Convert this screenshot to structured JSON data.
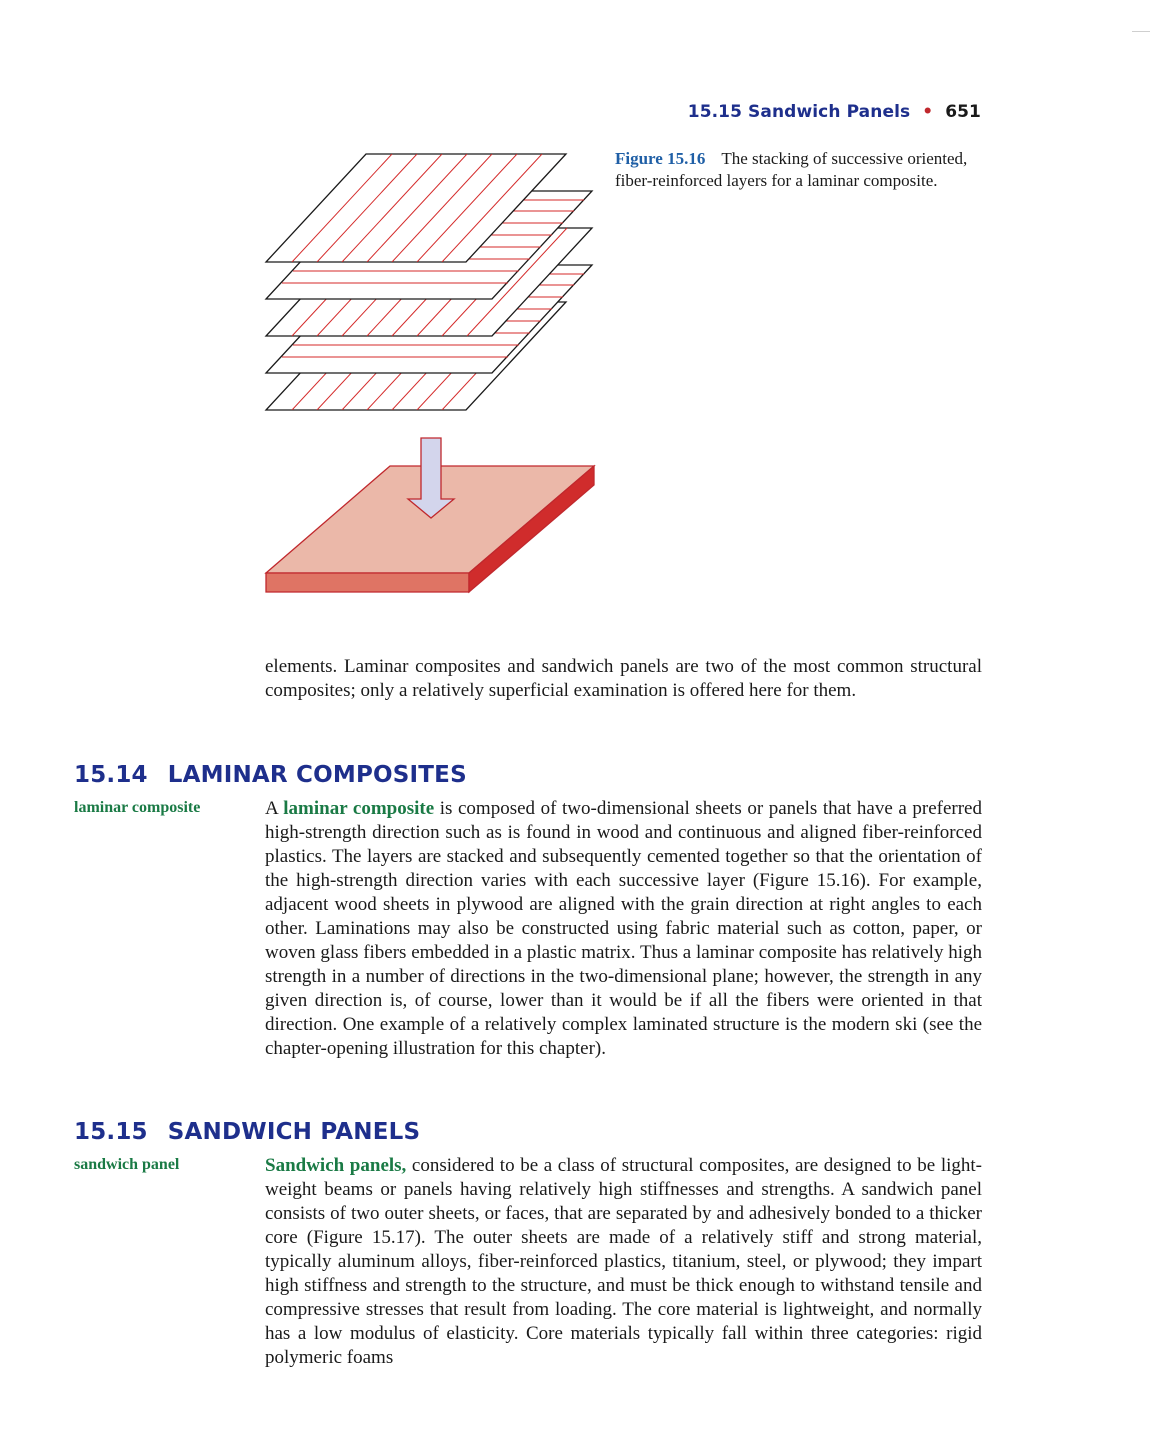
{
  "running_head": {
    "section": "15.15 Sandwich Panels",
    "separator": "•",
    "page_number": "651"
  },
  "figure": {
    "label": "Figure 15.16",
    "caption": "The stacking of successive oriented, fiber-reinforced layers for a laminar composite.",
    "colors": {
      "fiber_lines": "#d42a2a",
      "layer_outline": "#1a1a1a",
      "slab_top": "#ebb8a9",
      "slab_front": "#df7464",
      "slab_side": "#d02c2c",
      "arrow_fill": "#d3d5ec",
      "arrow_stroke": "#c0282d"
    }
  },
  "intro_paragraph": "elements. Laminar composites and sandwich panels are two of the most common structural composites; only a relatively superficial examination is offered here for them.",
  "section_1514": {
    "number": "15.14",
    "title": "LAMINAR COMPOSITES",
    "margin_term": "laminar composite",
    "lead": "A ",
    "term": "laminar composite",
    "body": " is composed of two-dimensional sheets or panels that have a preferred high-strength direction such as is found in wood and continuous and aligned fiber-reinforced plastics. The layers are stacked and subsequently cemented together so that the orientation of the high-strength direction varies with each successive layer (Figure 15.16). For example, adjacent wood sheets in plywood are aligned with the grain direction at right angles to each other. Laminations may also be constructed using fabric material such as cotton, paper, or woven glass fibers embedded in a plastic matrix. Thus a laminar composite has relatively high strength in a number of directions in the two-dimensional plane; however, the strength in any given direction is, of course, lower than it would be if all the fibers were oriented in that direction. One example of a relatively complex laminated structure is the modern ski (see the chapter-opening illustration for this chapter)."
  },
  "section_1515": {
    "number": "15.15",
    "title": "SANDWICH PANELS",
    "margin_term": "sandwich panel",
    "term": "Sandwich panels,",
    "body": " considered to be a class of structural composites, are designed to be light-weight beams or panels having relatively high stiffnesses and strengths. A sandwich panel consists of two outer sheets, or faces, that are separated by and adhesively bonded to a thicker core (Figure 15.17). The outer sheets are made of a relatively stiff and strong material, typically aluminum alloys, fiber-reinforced plastics, titanium, steel, or plywood; they impart high stiffness and strength to the structure, and must be thick enough to withstand tensile and compressive stresses that result from loading. The core material is lightweight, and normally has a low modulus of elasticity. Core materials typically fall within three categories: rigid polymeric foams"
  }
}
